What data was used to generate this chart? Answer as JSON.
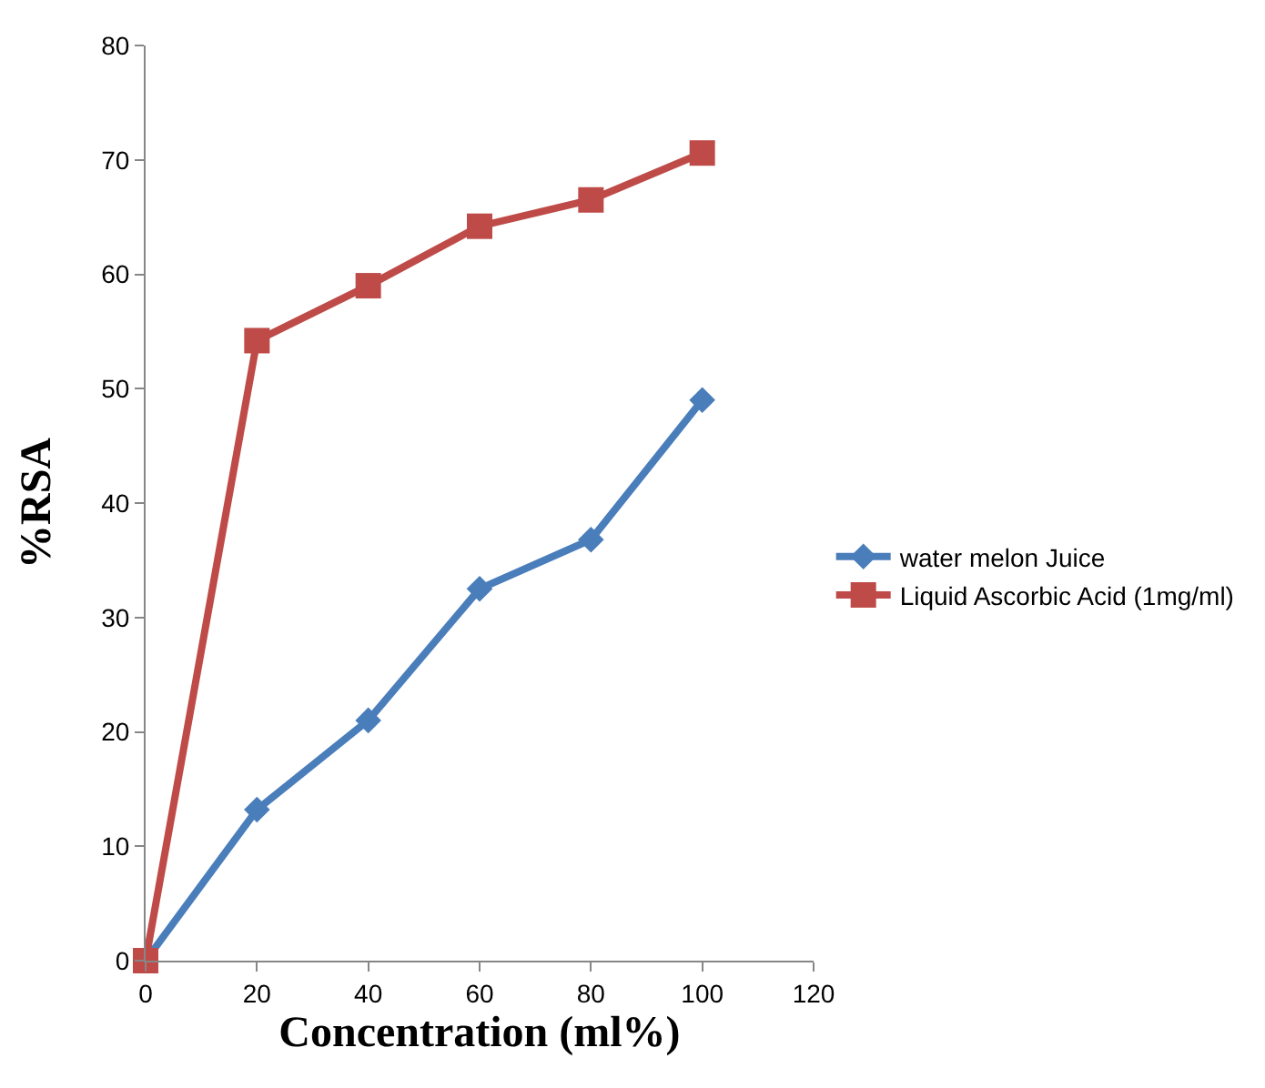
{
  "chart_data": {
    "type": "line",
    "xlabel": "Concentration (ml%)",
    "ylabel": "%RSA",
    "x": [
      0,
      20,
      40,
      60,
      80,
      100
    ],
    "series": [
      {
        "name": "water melon Juice",
        "color": "#4a7ebb",
        "marker": "diamond",
        "values": [
          0,
          13.2,
          21,
          32.5,
          36.8,
          49
        ]
      },
      {
        "name": "Liquid Ascorbic Acid (1mg/ml)",
        "color": "#be4b48",
        "marker": "square",
        "values": [
          0,
          54.2,
          59,
          64.2,
          66.5,
          70.6
        ]
      }
    ],
    "xlim": [
      0,
      120
    ],
    "xticks": [
      0,
      20,
      40,
      60,
      80,
      100,
      120
    ],
    "ylim": [
      0,
      80
    ],
    "yticks": [
      0,
      10,
      20,
      30,
      40,
      50,
      60,
      70,
      80
    ],
    "grid": false,
    "legend": "right",
    "line_style": "solid"
  }
}
